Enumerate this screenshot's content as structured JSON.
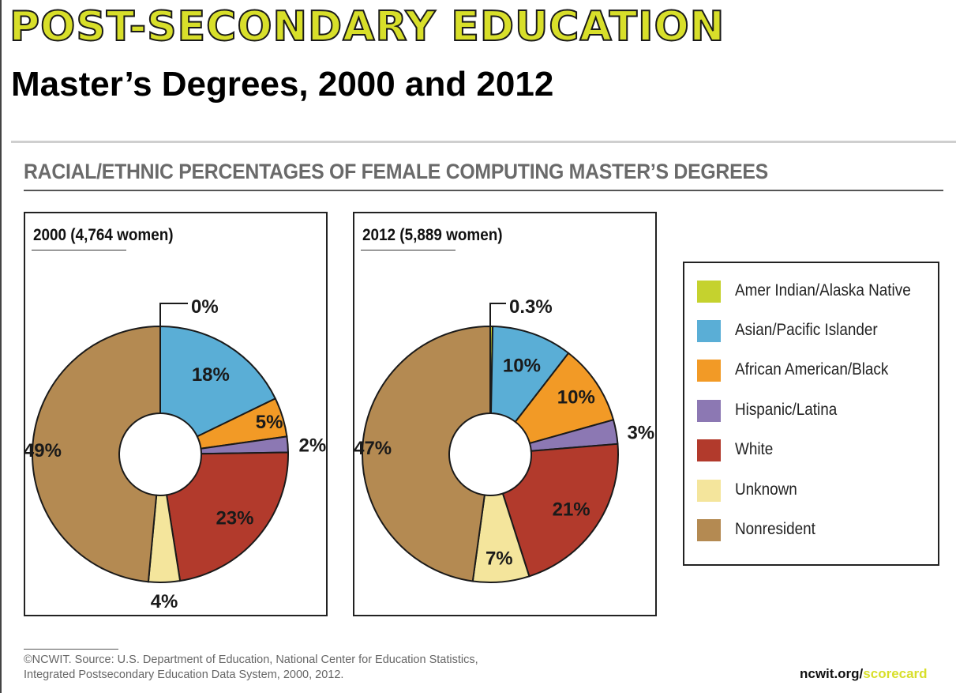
{
  "banner": {
    "title": "POST-SECONDARY EDUCATION"
  },
  "slide": {
    "title": "Master’s Degrees, 2000 and 2012"
  },
  "chart_heading": "RACIAL/ETHNIC PERCENTAGES OF FEMALE COMPUTING MASTER’S DEGREES",
  "footnote": {
    "line1": "©NCWIT. Source: U.S. Department of Education, National Center for Education Statistics,",
    "line2": "Integrated Postsecondary Education Data System, 2000, 2012."
  },
  "brand": {
    "part1": "ncwit.org/",
    "part2": "scorecard"
  },
  "colors": {
    "amer_indian": "#c5d22e",
    "asian": "#5aaed6",
    "african_american": "#f29a26",
    "hispanic": "#8c78b3",
    "white": "#b23a2c",
    "unknown": "#f4e59c",
    "nonresident": "#b48a52",
    "banner_fill": "#d8df2a"
  },
  "chart_data": [
    {
      "type": "pie",
      "style": "donut",
      "title": "2000 (4,764 women)",
      "categories": [
        "Amer Indian/Alaska Native",
        "Asian/Pacific Islander",
        "African American/Black",
        "Hispanic/Latina",
        "White",
        "Unknown",
        "Nonresident"
      ],
      "values": [
        0,
        18,
        5,
        2,
        23,
        4,
        49
      ],
      "labels": [
        "0%",
        "18%",
        "5%",
        "2%",
        "23%",
        "4%",
        "49%"
      ]
    },
    {
      "type": "pie",
      "style": "donut",
      "title": "2012 (5,889 women)",
      "categories": [
        "Amer Indian/Alaska Native",
        "Asian/Pacific Islander",
        "African American/Black",
        "Hispanic/Latina",
        "White",
        "Unknown",
        "Nonresident"
      ],
      "values": [
        0.3,
        10,
        10,
        3,
        21,
        7,
        47
      ],
      "labels": [
        "0.3%",
        "10%",
        "10%",
        "3%",
        "21%",
        "7%",
        "47%"
      ]
    }
  ],
  "legend": {
    "items": [
      {
        "label": "Amer Indian/Alaska Native",
        "color": "#c5d22e"
      },
      {
        "label": "Asian/Pacific Islander",
        "color": "#5aaed6"
      },
      {
        "label": "African American/Black",
        "color": "#f29a26"
      },
      {
        "label": "Hispanic/Latina",
        "color": "#8c78b3"
      },
      {
        "label": "White",
        "color": "#b23a2c"
      },
      {
        "label": "Unknown",
        "color": "#f4e59c"
      },
      {
        "label": "Nonresident",
        "color": "#b48a52"
      }
    ]
  }
}
